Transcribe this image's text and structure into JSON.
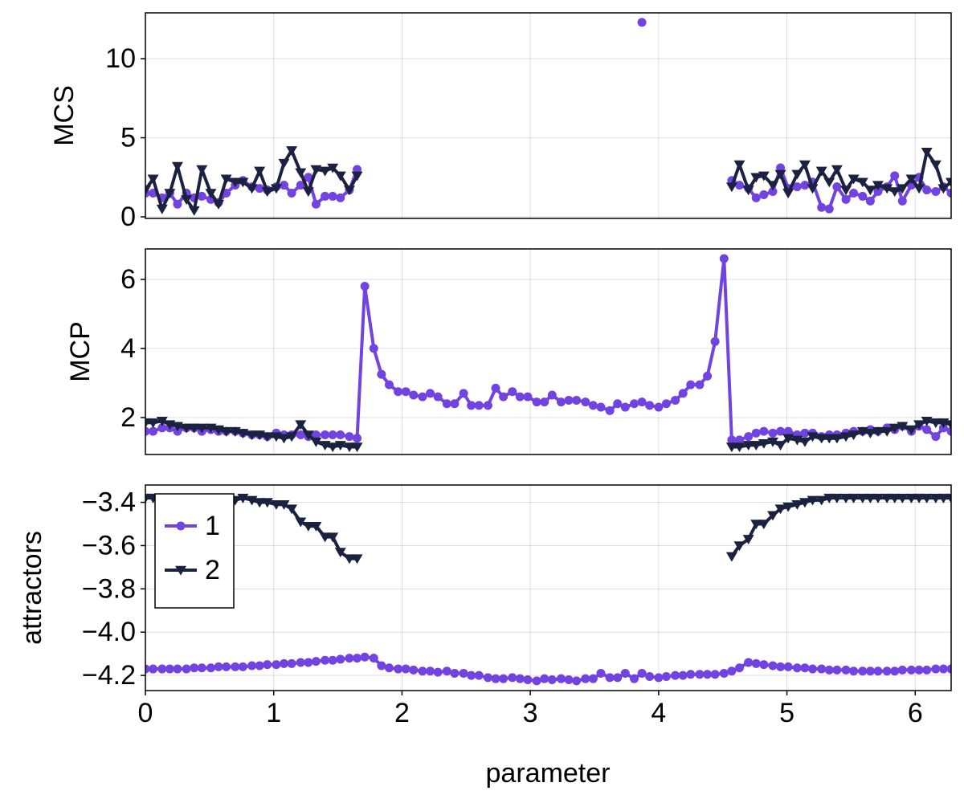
{
  "chart_data": {
    "type": "line",
    "xlabel": "parameter",
    "xlim": [
      0,
      6.28
    ],
    "xticks": [
      0,
      1,
      2,
      3,
      4,
      5,
      6
    ],
    "grid": true,
    "legend": "upper left",
    "x": [
      0.0,
      0.06,
      0.13,
      0.19,
      0.25,
      0.32,
      0.38,
      0.44,
      0.51,
      0.57,
      0.63,
      0.7,
      0.76,
      0.83,
      0.89,
      0.95,
      1.02,
      1.08,
      1.14,
      1.21,
      1.27,
      1.33,
      1.4,
      1.46,
      1.52,
      1.59,
      1.65,
      1.71,
      1.78,
      1.84,
      1.9,
      1.97,
      2.03,
      2.09,
      2.16,
      2.22,
      2.28,
      2.35,
      2.41,
      2.48,
      2.54,
      2.6,
      2.67,
      2.73,
      2.79,
      2.86,
      2.92,
      2.98,
      3.05,
      3.11,
      3.17,
      3.24,
      3.3,
      3.36,
      3.43,
      3.49,
      3.55,
      3.62,
      3.68,
      3.74,
      3.81,
      3.87,
      3.93,
      4.0,
      4.06,
      4.13,
      4.19,
      4.25,
      4.32,
      4.38,
      4.44,
      4.51,
      4.57,
      4.63,
      4.7,
      4.76,
      4.82,
      4.89,
      4.95,
      5.01,
      5.08,
      5.14,
      5.2,
      5.27,
      5.33,
      5.39,
      5.46,
      5.52,
      5.59,
      5.65,
      5.71,
      5.78,
      5.84,
      5.9,
      5.97,
      6.03,
      6.09,
      6.16,
      6.22,
      6.28
    ],
    "panels": [
      {
        "ylabel": "MCS",
        "ylim": [
          -0.1,
          12.9
        ],
        "yticks": [
          0,
          5,
          10
        ],
        "series": [
          {
            "name": "1",
            "color": "#7143e0",
            "marker": "circle",
            "values": [
              1.5,
              1.5,
              1.2,
              1.5,
              0.8,
              1.5,
              1.2,
              1.3,
              1.1,
              0.9,
              1.5,
              2.0,
              2.3,
              1.9,
              1.8,
              1.7,
              1.9,
              2.0,
              1.5,
              2.0,
              2.5,
              0.8,
              1.3,
              1.3,
              1.2,
              1.7,
              3.0,
              null,
              null,
              null,
              null,
              null,
              null,
              null,
              null,
              null,
              null,
              null,
              null,
              null,
              null,
              null,
              null,
              null,
              null,
              null,
              null,
              null,
              null,
              null,
              null,
              null,
              null,
              null,
              null,
              null,
              null,
              null,
              null,
              null,
              null,
              12.3,
              null,
              null,
              null,
              null,
              null,
              null,
              null,
              null,
              null,
              null,
              2.3,
              2.0,
              1.8,
              1.2,
              1.4,
              1.6,
              3.1,
              1.8,
              1.9,
              2.0,
              2.2,
              0.6,
              0.5,
              1.9,
              1.1,
              1.5,
              1.3,
              1.0,
              1.6,
              1.9,
              2.6,
              1.0,
              2.0,
              2.5,
              1.7,
              1.6,
              1.9,
              1.5
            ]
          },
          {
            "name": "2",
            "color": "#1b2140",
            "marker": "triangle-down",
            "values": [
              1.7,
              2.4,
              0.5,
              1.5,
              3.2,
              1.1,
              0.4,
              3.0,
              1.5,
              0.8,
              2.4,
              2.2,
              2.2,
              1.8,
              2.9,
              1.6,
              1.8,
              3.4,
              4.2,
              2.8,
              1.6,
              3.0,
              2.9,
              3.1,
              2.6,
              1.7,
              2.6,
              null,
              null,
              null,
              null,
              null,
              null,
              null,
              null,
              null,
              null,
              null,
              null,
              null,
              null,
              null,
              null,
              null,
              null,
              null,
              null,
              null,
              null,
              null,
              null,
              null,
              null,
              null,
              null,
              null,
              null,
              null,
              null,
              null,
              null,
              null,
              null,
              null,
              null,
              null,
              null,
              null,
              null,
              null,
              null,
              null,
              1.9,
              3.3,
              1.7,
              2.5,
              2.6,
              2.0,
              2.7,
              1.5,
              2.7,
              3.3,
              1.8,
              2.9,
              2.2,
              3.0,
              1.7,
              2.4,
              2.2,
              1.7,
              2.0,
              1.8,
              1.6,
              1.8,
              2.4,
              1.8,
              4.1,
              3.3,
              1.8,
              2.2
            ]
          }
        ]
      },
      {
        "ylabel": "MCP",
        "ylim": [
          0.93,
          6.88
        ],
        "yticks": [
          2,
          4,
          6
        ],
        "series": [
          {
            "name": "1",
            "color": "#7143e0",
            "marker": "circle",
            "values": [
              1.6,
              1.6,
              1.7,
              1.7,
              1.6,
              1.7,
              1.7,
              1.6,
              1.65,
              1.6,
              1.6,
              1.6,
              1.55,
              1.5,
              1.5,
              1.45,
              1.55,
              1.5,
              1.5,
              1.5,
              1.45,
              1.5,
              1.5,
              1.5,
              1.5,
              1.45,
              1.4,
              5.8,
              4.0,
              3.25,
              2.95,
              2.75,
              2.75,
              2.65,
              2.6,
              2.7,
              2.6,
              2.4,
              2.4,
              2.7,
              2.35,
              2.35,
              2.35,
              2.85,
              2.6,
              2.75,
              2.6,
              2.6,
              2.45,
              2.45,
              2.65,
              2.45,
              2.5,
              2.5,
              2.45,
              2.35,
              2.3,
              2.2,
              2.4,
              2.3,
              2.4,
              2.45,
              2.35,
              2.3,
              2.4,
              2.5,
              2.7,
              2.95,
              2.95,
              3.2,
              4.2,
              6.6,
              1.35,
              1.35,
              1.45,
              1.55,
              1.6,
              1.55,
              1.6,
              1.6,
              1.5,
              1.55,
              1.55,
              1.45,
              1.5,
              1.5,
              1.55,
              1.6,
              1.6,
              1.65,
              1.6,
              1.7,
              1.65,
              1.75,
              1.6,
              1.75,
              1.65,
              1.45,
              1.7,
              1.6
            ]
          },
          {
            "name": "2",
            "color": "#1b2140",
            "marker": "triangle-down",
            "values": [
              1.85,
              1.85,
              1.9,
              1.8,
              1.75,
              1.7,
              1.7,
              1.7,
              1.7,
              1.65,
              1.6,
              1.6,
              1.55,
              1.5,
              1.5,
              1.45,
              1.45,
              1.4,
              1.45,
              1.8,
              1.5,
              1.3,
              1.2,
              1.15,
              1.2,
              1.15,
              1.15,
              null,
              null,
              null,
              null,
              null,
              null,
              null,
              null,
              null,
              null,
              null,
              null,
              null,
              null,
              null,
              null,
              null,
              null,
              null,
              null,
              null,
              null,
              null,
              null,
              null,
              null,
              null,
              null,
              null,
              null,
              null,
              null,
              null,
              null,
              null,
              null,
              null,
              null,
              null,
              null,
              null,
              null,
              null,
              null,
              null,
              1.15,
              1.15,
              1.2,
              1.2,
              1.25,
              1.3,
              1.2,
              1.4,
              1.35,
              1.3,
              1.45,
              1.4,
              1.4,
              1.4,
              1.45,
              1.5,
              1.6,
              1.55,
              1.6,
              1.6,
              1.7,
              1.75,
              1.65,
              1.8,
              1.9,
              1.85,
              1.85,
              1.8
            ]
          }
        ]
      },
      {
        "ylabel": "attractors",
        "ylim": [
          -4.27,
          -3.32
        ],
        "yticks": [
          {
            "value": -3.4,
            "label": "−3.4"
          },
          {
            "value": -3.6,
            "label": "−3.6"
          },
          {
            "value": -3.8,
            "label": "−3.8"
          },
          {
            "value": -4.0,
            "label": "−4.0"
          },
          {
            "value": -4.2,
            "label": "−4.2"
          }
        ],
        "series": [
          {
            "name": "1",
            "color": "#7143e0",
            "marker": "circle",
            "values": [
              -4.17,
              -4.17,
              -4.17,
              -4.17,
              -4.17,
              -4.17,
              -4.165,
              -4.165,
              -4.165,
              -4.16,
              -4.16,
              -4.16,
              -4.16,
              -4.155,
              -4.155,
              -4.15,
              -4.15,
              -4.145,
              -4.145,
              -4.14,
              -4.14,
              -4.135,
              -4.13,
              -4.13,
              -4.125,
              -4.12,
              -4.12,
              -4.115,
              -4.12,
              -4.155,
              -4.165,
              -4.17,
              -4.17,
              -4.175,
              -4.18,
              -4.18,
              -4.185,
              -4.18,
              -4.19,
              -4.19,
              -4.2,
              -4.2,
              -4.21,
              -4.215,
              -4.215,
              -4.21,
              -4.215,
              -4.22,
              -4.225,
              -4.215,
              -4.22,
              -4.215,
              -4.22,
              -4.225,
              -4.215,
              -4.215,
              -4.19,
              -4.21,
              -4.21,
              -4.19,
              -4.215,
              -4.19,
              -4.205,
              -4.21,
              -4.205,
              -4.2,
              -4.2,
              -4.195,
              -4.195,
              -4.195,
              -4.195,
              -4.19,
              -4.18,
              -4.165,
              -4.14,
              -4.145,
              -4.15,
              -4.155,
              -4.16,
              -4.16,
              -4.165,
              -4.165,
              -4.17,
              -4.17,
              -4.175,
              -4.175,
              -4.175,
              -4.18,
              -4.18,
              -4.18,
              -4.18,
              -4.18,
              -4.18,
              -4.175,
              -4.175,
              -4.175,
              -4.175,
              -4.17,
              -4.17,
              -4.17
            ]
          },
          {
            "name": "2",
            "color": "#1b2140",
            "marker": "triangle-down",
            "values": [
              -3.38,
              -3.38,
              -3.38,
              -3.38,
              -3.39,
              -3.39,
              -3.39,
              -3.39,
              -3.39,
              -3.39,
              -3.39,
              -3.39,
              -3.38,
              -3.39,
              -3.4,
              -3.4,
              -3.41,
              -3.41,
              -3.43,
              -3.49,
              -3.51,
              -3.51,
              -3.56,
              -3.56,
              -3.63,
              -3.66,
              -3.66,
              null,
              null,
              null,
              null,
              null,
              null,
              null,
              null,
              null,
              null,
              null,
              null,
              null,
              null,
              null,
              null,
              null,
              null,
              null,
              null,
              null,
              null,
              null,
              null,
              null,
              null,
              null,
              null,
              null,
              null,
              null,
              null,
              null,
              null,
              null,
              null,
              null,
              null,
              null,
              null,
              null,
              null,
              null,
              null,
              null,
              -3.65,
              -3.6,
              -3.57,
              -3.5,
              -3.5,
              -3.46,
              -3.43,
              -3.42,
              -3.41,
              -3.4,
              -3.39,
              -3.39,
              -3.38,
              -3.38,
              -3.38,
              -3.38,
              -3.38,
              -3.38,
              -3.38,
              -3.38,
              -3.38,
              -3.38,
              -3.38,
              -3.38,
              -3.38,
              -3.38,
              -3.38,
              -3.38
            ]
          }
        ]
      }
    ]
  }
}
